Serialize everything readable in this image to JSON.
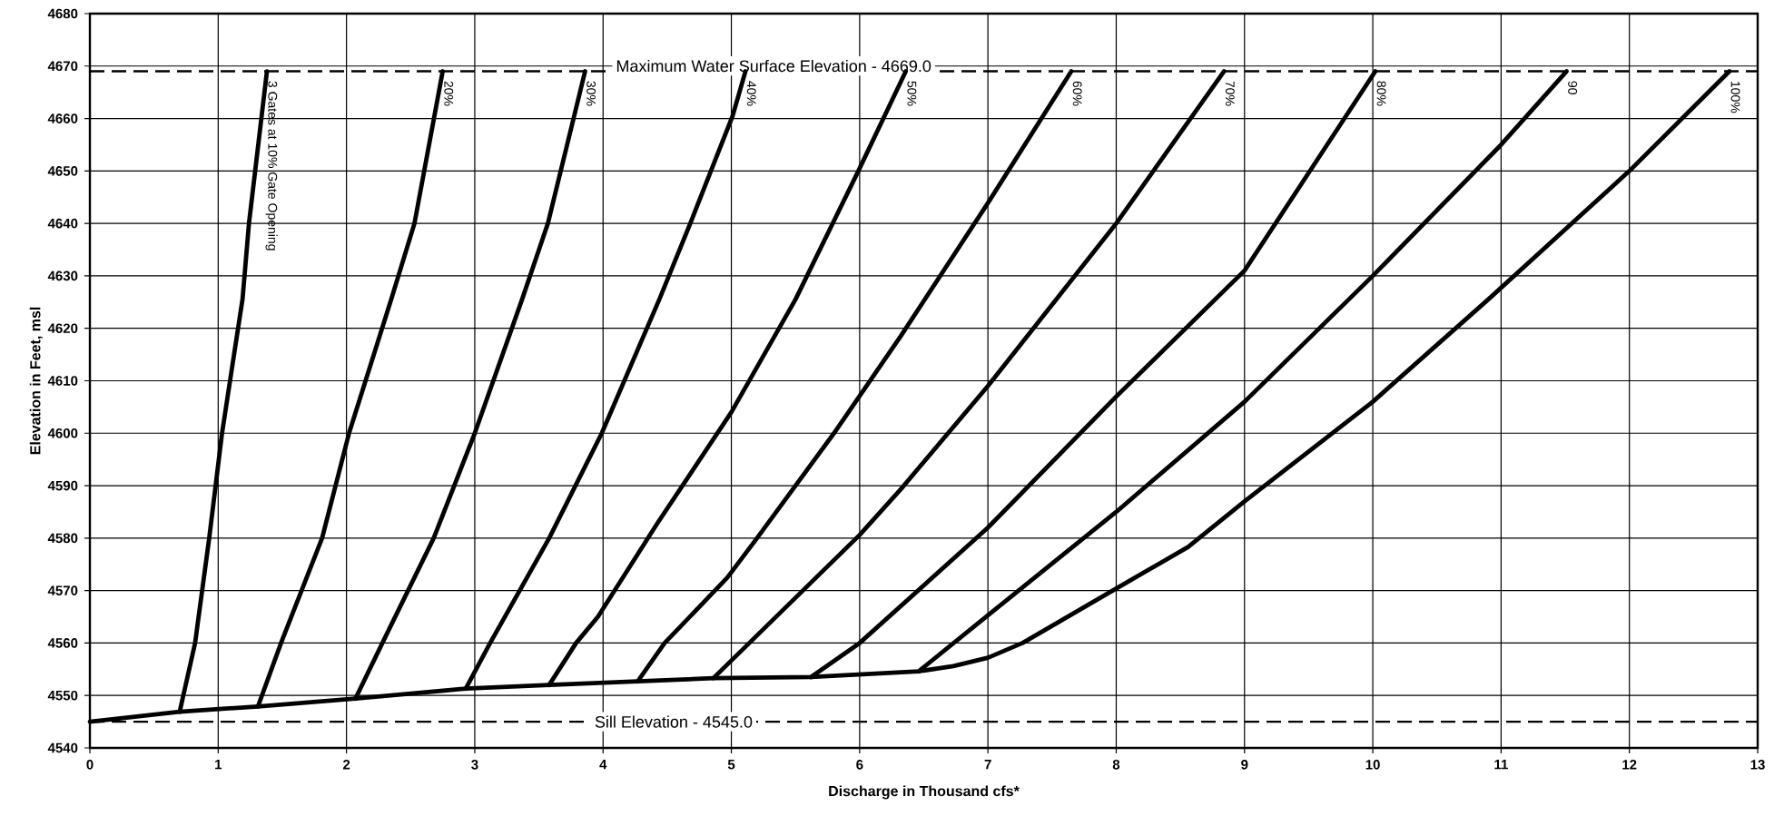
{
  "chart_data": {
    "type": "line",
    "xlabel": "Discharge in Thousand cfs*",
    "ylabel": "Elevation in Feet, msl",
    "xlim": [
      0,
      13
    ],
    "ylim": [
      4540,
      4680
    ],
    "xticks": [
      0,
      1,
      2,
      3,
      4,
      5,
      6,
      7,
      8,
      9,
      10,
      11,
      12,
      13
    ],
    "yticks": [
      4540,
      4550,
      4560,
      4570,
      4580,
      4590,
      4600,
      4610,
      4620,
      4630,
      4640,
      4650,
      4660,
      4670,
      4680
    ],
    "grid": true,
    "legend": false,
    "marker": "none",
    "line_style": "solid",
    "ref_lines": [
      {
        "axis": "y",
        "value": 4669,
        "label": "Maximum Water Surface Elevation - 4669.0",
        "line_style": "dashed"
      },
      {
        "axis": "y",
        "value": 4545,
        "label": "Sill Elevation - 4545.0",
        "line_style": "dashed"
      }
    ],
    "series": [
      {
        "name": "3 Gates at 10% Gate Opening",
        "color": "#000000",
        "x": [
          0.7,
          0.82,
          0.93,
          1.03,
          1.19,
          1.24,
          1.38
        ],
        "values": [
          4546.9,
          4560,
          4580,
          4600,
          4625.6,
          4640,
          4669
        ]
      },
      {
        "name": "20%",
        "color": "#000000",
        "x": [
          1.31,
          1.49,
          1.81,
          2.02,
          2.35,
          2.53,
          2.75
        ],
        "values": [
          4547.9,
          4560,
          4580,
          4600,
          4625.6,
          4640,
          4669
        ]
      },
      {
        "name": "30%",
        "color": "#000000",
        "x": [
          2.07,
          2.28,
          2.68,
          3.0,
          3.37,
          3.57,
          3.86
        ],
        "values": [
          4549.4,
          4560,
          4580,
          4600,
          4625.6,
          4640,
          4669
        ]
      },
      {
        "name": "40%",
        "color": "#000000",
        "x": [
          2.93,
          3.12,
          3.58,
          3.99,
          4.44,
          4.68,
          5.01,
          5.11
        ],
        "values": [
          4551.3,
          4560,
          4580,
          4600,
          4625.6,
          4640,
          4660.5,
          4669
        ]
      },
      {
        "name": "50%",
        "color": "#000000",
        "x": [
          3.58,
          3.79,
          3.96,
          4.42,
          5.0,
          5.5,
          5.99,
          6.36
        ],
        "values": [
          4552,
          4560,
          4565,
          4582.7,
          4604,
          4625.5,
          4650,
          4669
        ]
      },
      {
        "name": "60%",
        "color": "#000000",
        "x": [
          4.27,
          4.48,
          4.97,
          5.2,
          5.8,
          6.32,
          7.0,
          7.65
        ],
        "values": [
          4552.7,
          4560,
          4572.5,
          4580,
          4600,
          4618.5,
          4643.9,
          4669
        ]
      },
      {
        "name": "70%",
        "color": "#000000",
        "x": [
          4.86,
          5.14,
          6.0,
          6.32,
          7.0,
          8.0,
          8.84
        ],
        "values": [
          4553.3,
          4560,
          4580.6,
          4589.3,
          4609,
          4640,
          4669
        ]
      },
      {
        "name": "80%",
        "color": "#000000",
        "x": [
          5.62,
          6.0,
          7.0,
          8.0,
          9.0,
          10.02
        ],
        "values": [
          4553.5,
          4560,
          4582,
          4607,
          4631,
          4669
        ]
      },
      {
        "name": "90",
        "color": "#000000",
        "x": [
          6.46,
          7.0,
          8.0,
          9.0,
          10.0,
          11.0,
          11.51
        ],
        "values": [
          4554.6,
          4565.3,
          4585,
          4606,
          4630,
          4655,
          4669
        ]
      },
      {
        "name": "100%",
        "color": "#000000",
        "x": [
          0,
          0.7,
          1.31,
          2.07,
          2.93,
          3.58,
          4.27,
          4.86,
          5.62,
          6.46,
          6.73,
          7.0,
          7.27,
          8.0,
          8.56,
          9.0,
          10.0,
          10.9,
          12.0,
          12.78
        ],
        "values": [
          4545,
          4546.9,
          4547.9,
          4549.4,
          4551.3,
          4552,
          4552.7,
          4553.3,
          4553.5,
          4554.6,
          4555.6,
          4557.2,
          4560,
          4570.4,
          4578.3,
          4587,
          4606,
          4625.5,
          4650,
          4669
        ]
      }
    ]
  }
}
